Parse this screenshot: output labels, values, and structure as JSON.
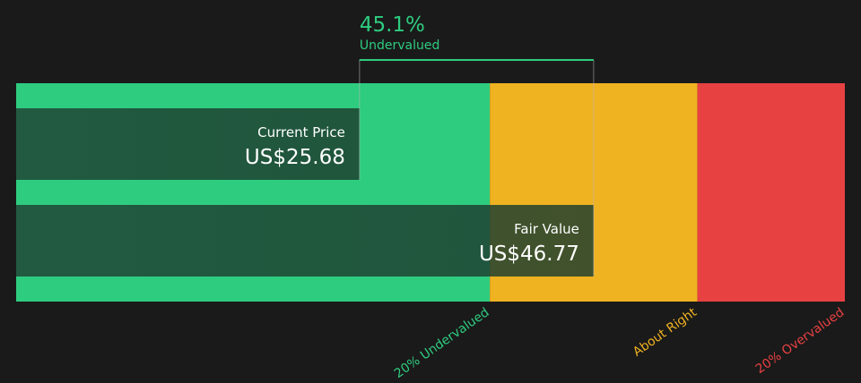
{
  "chart_data": {
    "type": "bar",
    "orientation": "horizontal",
    "currency": "US$",
    "x_domain": [
      -5.25,
      69.4
    ],
    "series": [
      {
        "name": "Current Price",
        "value": 25.68,
        "label": "US$25.68"
      },
      {
        "name": "Fair Value",
        "value": 46.77,
        "label": "US$46.77"
      }
    ],
    "zones": [
      {
        "label": "20% Undervalued",
        "from": -5.25,
        "to": 37.42,
        "color": "#2ecc7f"
      },
      {
        "label": "About Right",
        "from": 37.42,
        "to": 56.12,
        "color": "#efb221"
      },
      {
        "label": "20% Overvalued",
        "from": 56.12,
        "to": 69.4,
        "color": "#e84142"
      }
    ],
    "annotation": {
      "value": "45.1%",
      "label": "Undervalued",
      "color": "#2ecc7f"
    },
    "grid": false
  }
}
